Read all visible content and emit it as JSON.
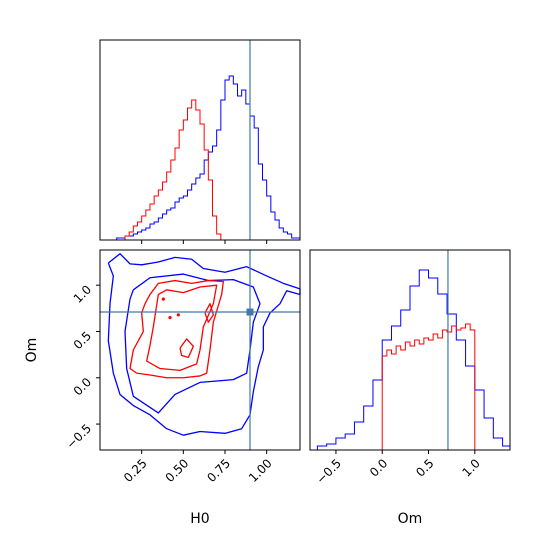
{
  "chart_data": {
    "type": "corner",
    "variables": [
      "H0",
      "Om"
    ],
    "truths": {
      "H0": 0.9,
      "Om": 0.71
    },
    "colors": {
      "blue": "#0000ff",
      "red": "#ff0000",
      "truth": "#4477aa"
    },
    "panels": [
      {
        "id": "hist-H0",
        "type": "histogram",
        "xlim": [
          0.0,
          1.2
        ],
        "ylim": [
          0,
          1.0
        ],
        "yticks_shown": false,
        "xtick_values": [
          0.25,
          0.5,
          0.75,
          1.0
        ],
        "series": [
          {
            "color": "#0000ff",
            "bins": [
              0.1,
              0.125,
              0.15,
              0.175,
              0.2,
              0.225,
              0.25,
              0.275,
              0.3,
              0.325,
              0.35,
              0.375,
              0.4,
              0.425,
              0.45,
              0.475,
              0.5,
              0.525,
              0.55,
              0.575,
              0.6,
              0.625,
              0.65,
              0.675,
              0.7,
              0.725,
              0.75,
              0.775,
              0.8,
              0.825,
              0.85,
              0.875,
              0.9,
              0.925,
              0.95,
              0.975,
              1.0,
              1.025,
              1.05,
              1.075,
              1.1,
              1.125,
              1.15,
              1.175,
              1.2
            ],
            "counts": [
              0.01,
              0.01,
              0.02,
              0.02,
              0.03,
              0.04,
              0.05,
              0.06,
              0.08,
              0.09,
              0.11,
              0.13,
              0.15,
              0.16,
              0.19,
              0.21,
              0.22,
              0.25,
              0.28,
              0.31,
              0.33,
              0.4,
              0.44,
              0.47,
              0.55,
              0.7,
              0.8,
              0.82,
              0.78,
              0.72,
              0.75,
              0.68,
              0.62,
              0.56,
              0.38,
              0.3,
              0.22,
              0.14,
              0.1,
              0.06,
              0.04,
              0.03,
              0.01,
              0.01
            ]
          },
          {
            "color": "#ff0000",
            "bins": [
              0.15,
              0.175,
              0.2,
              0.225,
              0.25,
              0.275,
              0.3,
              0.325,
              0.35,
              0.375,
              0.4,
              0.425,
              0.45,
              0.475,
              0.5,
              0.525,
              0.55,
              0.575,
              0.6,
              0.625,
              0.65,
              0.675,
              0.7,
              0.725,
              0.75
            ],
            "counts": [
              0.02,
              0.04,
              0.07,
              0.09,
              0.12,
              0.15,
              0.18,
              0.22,
              0.25,
              0.29,
              0.34,
              0.4,
              0.46,
              0.55,
              0.6,
              0.66,
              0.7,
              0.65,
              0.58,
              0.45,
              0.3,
              0.12,
              0.03,
              0.0
            ]
          }
        ]
      },
      {
        "id": "contour-H0-Om",
        "type": "contour",
        "xlim": [
          0.0,
          1.2
        ],
        "ylim": [
          -0.78,
          1.38
        ],
        "xtick_values": [
          0.25,
          0.5,
          0.75,
          1.0
        ],
        "ytick_values": [
          -0.5,
          0.0,
          0.5,
          1.0
        ],
        "xlabel": "H0",
        "ylabel": "Om",
        "contours": [
          {
            "color": "#0000ff",
            "points": [
              [
                0.05,
                1.24
              ],
              [
                0.12,
                1.34
              ],
              [
                0.18,
                1.23
              ],
              [
                0.25,
                1.22
              ],
              [
                0.35,
                1.25
              ],
              [
                0.45,
                1.3
              ],
              [
                0.55,
                1.28
              ],
              [
                0.62,
                1.18
              ],
              [
                0.75,
                1.14
              ],
              [
                0.88,
                1.2
              ],
              [
                1.0,
                1.1
              ],
              [
                1.1,
                1.02
              ],
              [
                1.2,
                0.96
              ],
              [
                1.2,
                0.9
              ],
              [
                1.12,
                0.94
              ],
              [
                1.08,
                0.8
              ],
              [
                1.02,
                0.7
              ],
              [
                0.98,
                0.55
              ],
              [
                0.98,
                0.3
              ],
              [
                0.95,
                0.12
              ],
              [
                0.92,
                -0.15
              ],
              [
                0.9,
                -0.4
              ],
              [
                0.85,
                -0.55
              ],
              [
                0.75,
                -0.6
              ],
              [
                0.6,
                -0.58
              ],
              [
                0.5,
                -0.62
              ],
              [
                0.4,
                -0.55
              ],
              [
                0.3,
                -0.4
              ],
              [
                0.2,
                -0.3
              ],
              [
                0.12,
                -0.18
              ],
              [
                0.08,
                0.05
              ],
              [
                0.05,
                0.4
              ],
              [
                0.06,
                0.8
              ],
              [
                0.08,
                1.1
              ],
              [
                0.05,
                1.24
              ]
            ]
          },
          {
            "color": "#0000ff",
            "points": [
              [
                0.2,
                0.95
              ],
              [
                0.3,
                1.08
              ],
              [
                0.5,
                1.12
              ],
              [
                0.65,
                1.05
              ],
              [
                0.8,
                1.06
              ],
              [
                0.92,
                0.98
              ],
              [
                0.96,
                0.8
              ],
              [
                0.92,
                0.6
              ],
              [
                0.9,
                0.3
              ],
              [
                0.88,
                0.05
              ],
              [
                0.8,
                -0.02
              ],
              [
                0.6,
                -0.05
              ],
              [
                0.45,
                -0.18
              ],
              [
                0.35,
                -0.38
              ],
              [
                0.2,
                -0.2
              ],
              [
                0.16,
                0.1
              ],
              [
                0.15,
                0.5
              ],
              [
                0.18,
                0.85
              ],
              [
                0.2,
                0.95
              ]
            ]
          },
          {
            "color": "#ff0000",
            "points": [
              [
                0.27,
                0.8
              ],
              [
                0.3,
                0.9
              ],
              [
                0.35,
                1.02
              ],
              [
                0.45,
                1.05
              ],
              [
                0.55,
                1.02
              ],
              [
                0.65,
                1.05
              ],
              [
                0.74,
                1.04
              ],
              [
                0.73,
                0.9
              ],
              [
                0.68,
                0.6
              ],
              [
                0.66,
                0.3
              ],
              [
                0.64,
                0.05
              ],
              [
                0.6,
                0.02
              ],
              [
                0.5,
                0.0
              ],
              [
                0.4,
                0.0
              ],
              [
                0.3,
                0.03
              ],
              [
                0.22,
                0.05
              ],
              [
                0.18,
                0.1
              ],
              [
                0.2,
                0.3
              ],
              [
                0.26,
                0.5
              ],
              [
                0.25,
                0.7
              ],
              [
                0.27,
                0.8
              ]
            ]
          },
          {
            "color": "#ff0000",
            "points": [
              [
                0.32,
                0.55
              ],
              [
                0.35,
                0.9
              ],
              [
                0.4,
                0.95
              ],
              [
                0.5,
                0.92
              ],
              [
                0.6,
                0.98
              ],
              [
                0.7,
                1.0
              ],
              [
                0.68,
                0.8
              ],
              [
                0.62,
                0.55
              ],
              [
                0.6,
                0.3
              ],
              [
                0.58,
                0.15
              ],
              [
                0.48,
                0.08
              ],
              [
                0.36,
                0.1
              ],
              [
                0.28,
                0.18
              ],
              [
                0.3,
                0.35
              ],
              [
                0.32,
                0.55
              ]
            ]
          },
          {
            "color": "#ff0000",
            "points": [
              [
                0.48,
                0.32
              ],
              [
                0.52,
                0.42
              ],
              [
                0.56,
                0.34
              ],
              [
                0.53,
                0.22
              ],
              [
                0.49,
                0.24
              ],
              [
                0.48,
                0.32
              ]
            ]
          },
          {
            "color": "#ff0000",
            "points": [
              [
                0.63,
                0.7
              ],
              [
                0.66,
                0.8
              ],
              [
                0.68,
                0.68
              ],
              [
                0.65,
                0.6
              ],
              [
                0.63,
                0.7
              ]
            ]
          }
        ],
        "dots": [
          {
            "color": "#ff0000",
            "points": [
              [
                0.42,
                0.65
              ],
              [
                0.38,
                0.85
              ],
              [
                0.47,
                0.68
              ]
            ]
          }
        ]
      },
      {
        "id": "hist-Om",
        "type": "histogram",
        "xlim": [
          -0.78,
          1.38
        ],
        "ylim": [
          0,
          1.0
        ],
        "yticks_shown": false,
        "xtick_values": [
          -0.5,
          0.0,
          0.5,
          1.0
        ],
        "xlabel": "Om",
        "series": [
          {
            "color": "#0000ff",
            "bins": [
              -0.7,
              -0.6,
              -0.5,
              -0.4,
              -0.3,
              -0.2,
              -0.1,
              0.0,
              0.1,
              0.2,
              0.3,
              0.4,
              0.5,
              0.6,
              0.7,
              0.8,
              0.9,
              1.0,
              1.1,
              1.2,
              1.3,
              1.38
            ],
            "counts": [
              0.02,
              0.03,
              0.06,
              0.08,
              0.14,
              0.22,
              0.35,
              0.55,
              0.62,
              0.7,
              0.82,
              0.9,
              0.86,
              0.78,
              0.68,
              0.55,
              0.42,
              0.3,
              0.16,
              0.06,
              0.02
            ]
          },
          {
            "color": "#ff0000",
            "bins": [
              0.0,
              0.05,
              0.1,
              0.15,
              0.2,
              0.25,
              0.3,
              0.35,
              0.4,
              0.45,
              0.5,
              0.55,
              0.6,
              0.65,
              0.7,
              0.75,
              0.8,
              0.85,
              0.9,
              0.95,
              1.0
            ],
            "counts": [
              0.47,
              0.5,
              0.48,
              0.52,
              0.5,
              0.54,
              0.52,
              0.55,
              0.53,
              0.56,
              0.55,
              0.58,
              0.56,
              0.6,
              0.59,
              0.62,
              0.6,
              0.61,
              0.63,
              0.6
            ]
          }
        ]
      }
    ]
  }
}
